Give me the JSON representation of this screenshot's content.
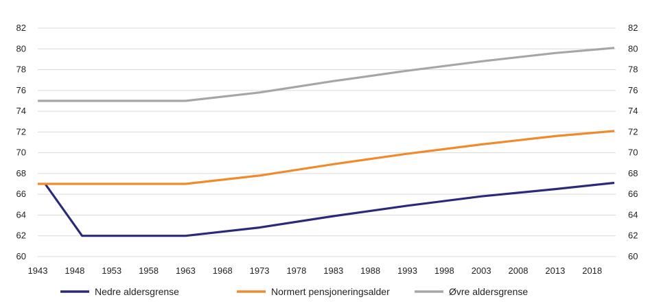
{
  "chart_data": {
    "type": "line",
    "title": "",
    "xlabel": "",
    "ylabel": "",
    "x_ticks": [
      "1943",
      "1948",
      "1953",
      "1958",
      "1963",
      "1968",
      "1973",
      "1978",
      "1983",
      "1988",
      "1993",
      "1998",
      "2003",
      "2008",
      "2013",
      "2018"
    ],
    "y_ticks": [
      "60",
      "62",
      "64",
      "66",
      "68",
      "70",
      "72",
      "74",
      "76",
      "78",
      "80",
      "82"
    ],
    "xlim": [
      1943,
      2021
    ],
    "ylim": [
      60,
      82
    ],
    "grid": true,
    "legend_placement": "bottom",
    "series": [
      {
        "name": "Nedre aldersgrense",
        "color": "#2b2a7a",
        "x": [
          1944,
          1949,
          1963,
          1973,
          1983,
          1993,
          2003,
          2013,
          2021
        ],
        "y": [
          67,
          62,
          62,
          62.8,
          63.9,
          64.9,
          65.8,
          66.5,
          67.1
        ]
      },
      {
        "name": "Normert pensjoneringsalder",
        "color": "#f08a2c",
        "x": [
          1943,
          1963,
          1973,
          1983,
          1993,
          2003,
          2013,
          2021
        ],
        "y": [
          67,
          67,
          67.8,
          68.9,
          69.9,
          70.8,
          71.6,
          72.1
        ]
      },
      {
        "name": "Øvre aldersgrense",
        "color": "#a6a6a6",
        "x": [
          1943,
          1963,
          1973,
          1983,
          1993,
          2003,
          2013,
          2021
        ],
        "y": [
          75,
          75,
          75.8,
          76.9,
          77.9,
          78.8,
          79.6,
          80.1
        ]
      }
    ]
  }
}
